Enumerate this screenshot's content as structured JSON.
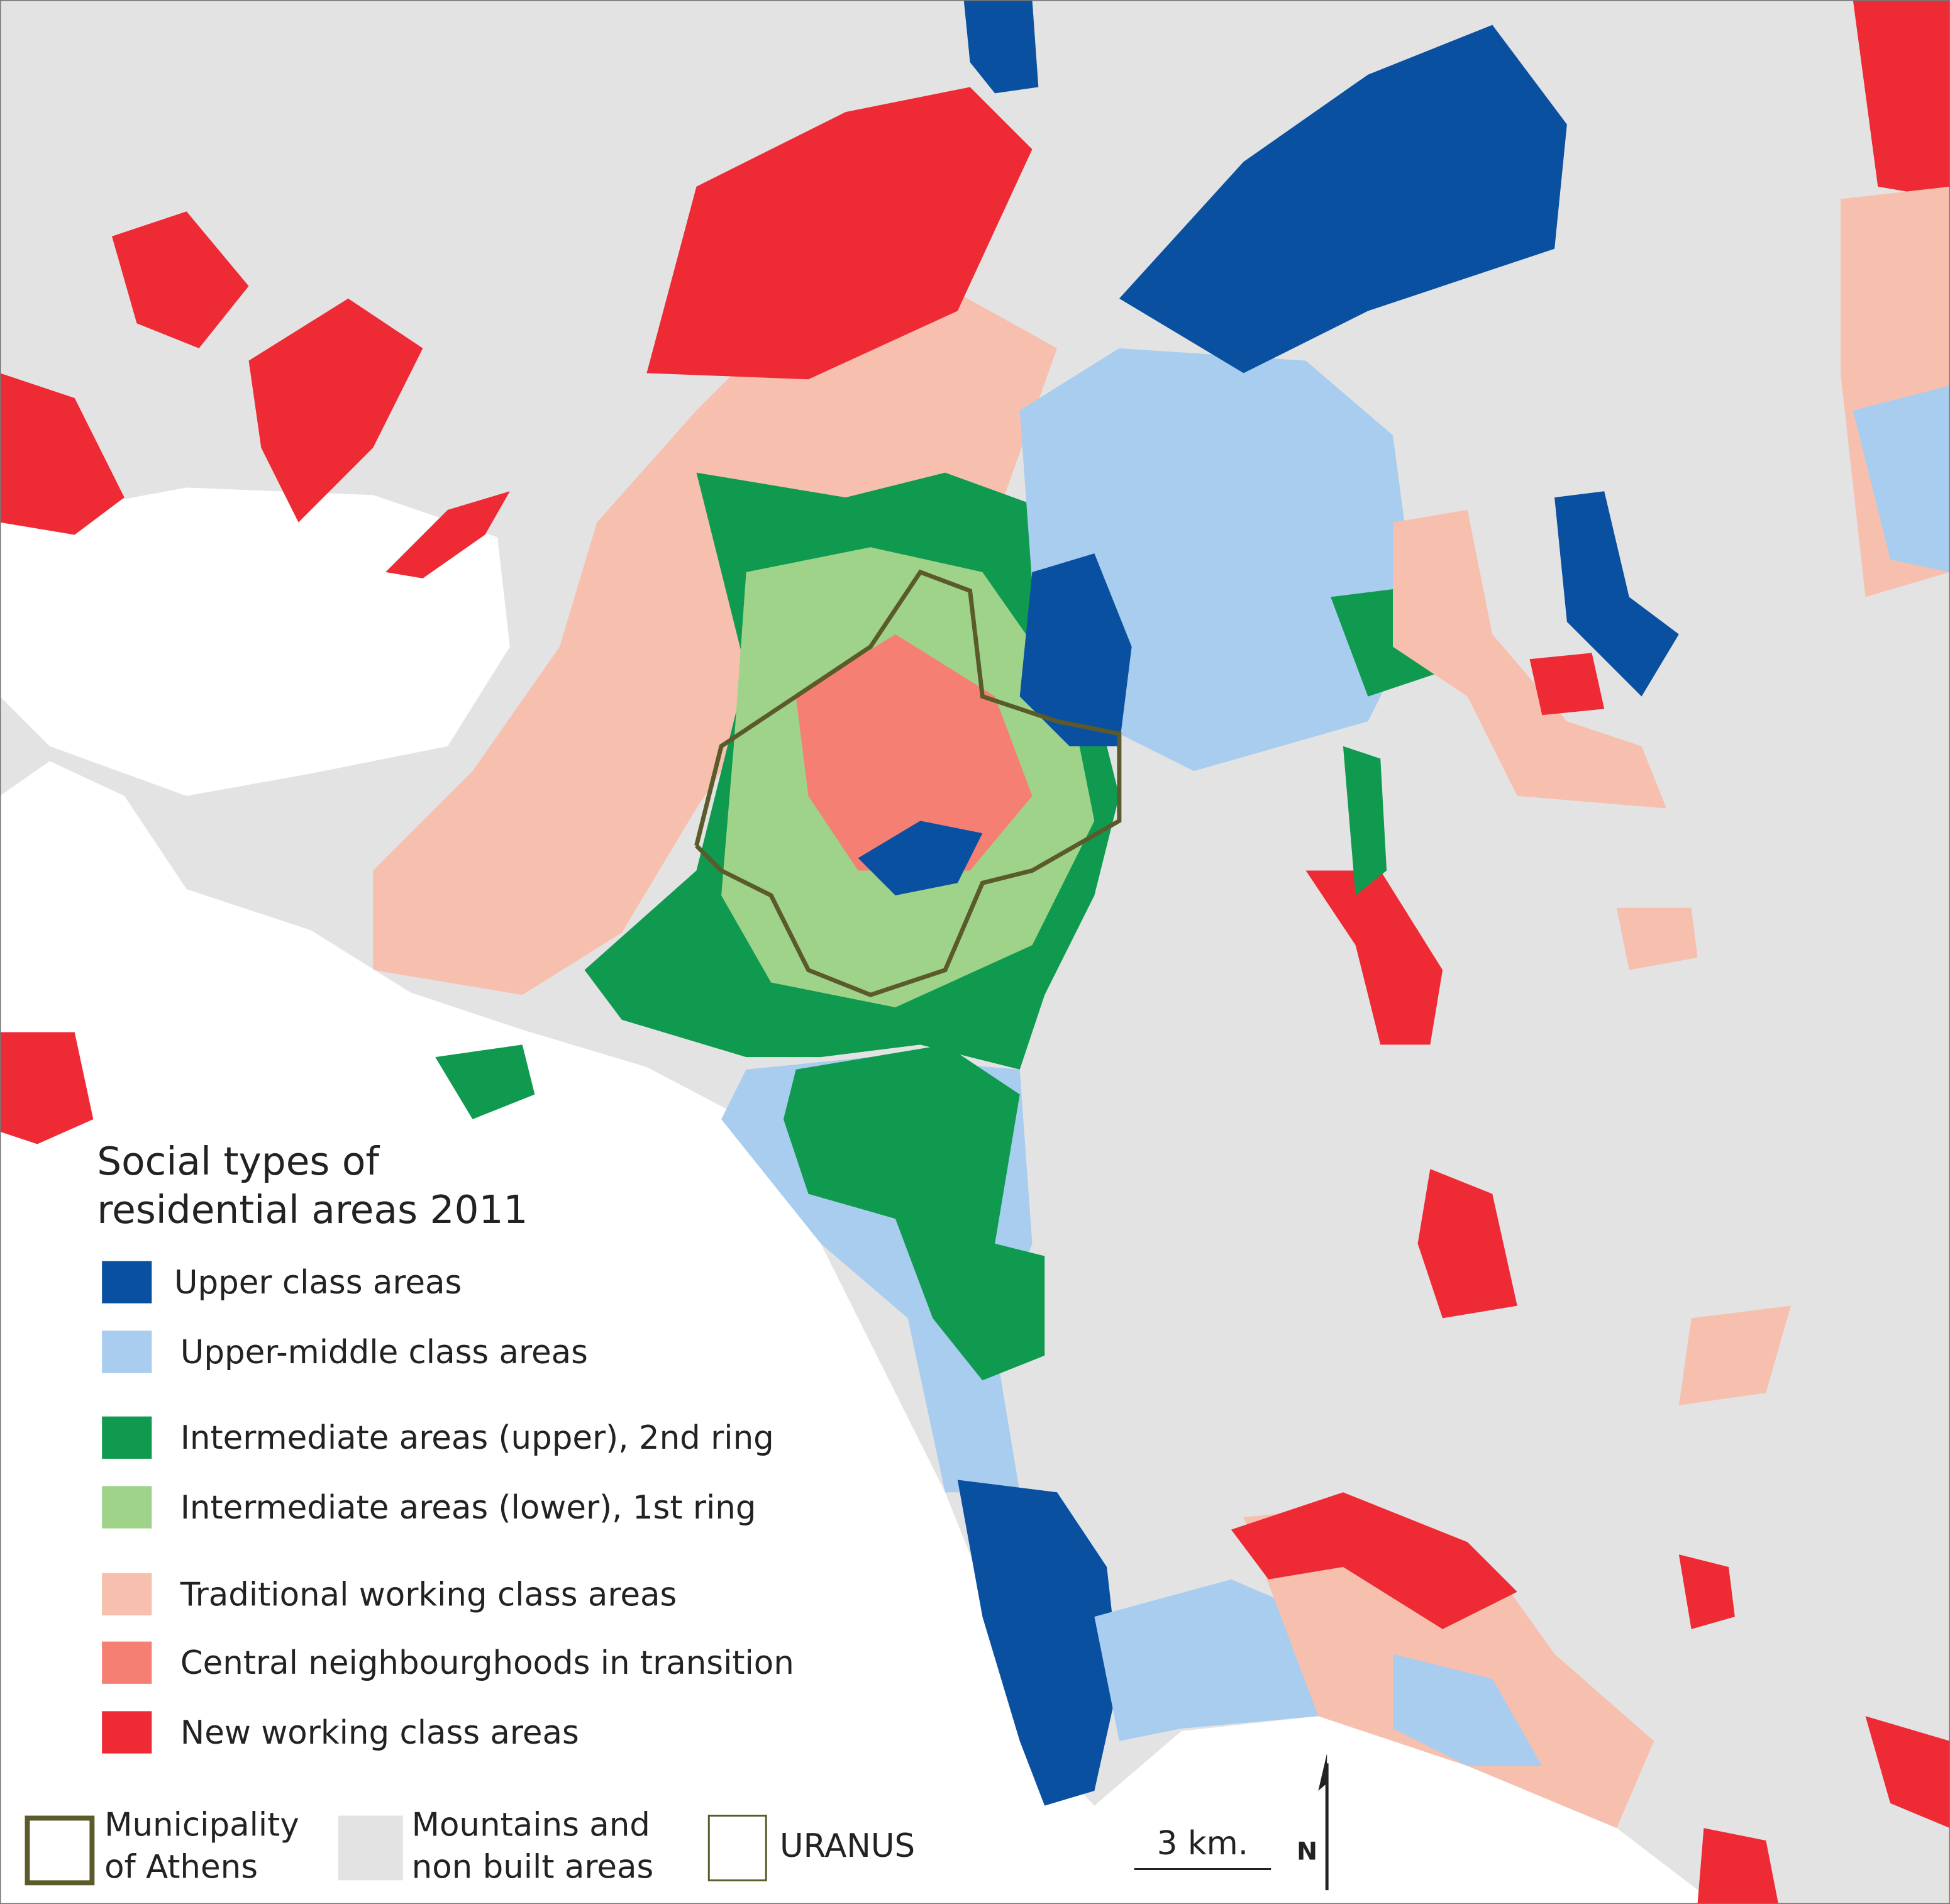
{
  "legend": {
    "title": [
      "Social types of",
      "residential areas 2011"
    ],
    "items": [
      {
        "label": "Upper class areas",
        "color": "#0a50a1"
      },
      {
        "label": "Upper-middle class areas",
        "color": "#a8cdef"
      },
      {
        "label": "Intermediate areas (upper), 2nd ring",
        "color": "#0f9a4f"
      },
      {
        "label": "Intermediate areas (lower), 1st ring",
        "color": "#9fd38a"
      },
      {
        "label": "Traditional working class areas",
        "color": "#f7c0ae"
      },
      {
        "label": "Central neighbourghoods in transition",
        "color": "#f47f72"
      },
      {
        "label": "New working class areas",
        "color": "#ee2a35"
      }
    ]
  },
  "bottom_legend": {
    "municipality": {
      "label": [
        "Municipality",
        "of Athens"
      ],
      "color": "#5a5a2a"
    },
    "mountains": {
      "label": [
        "Mountains and",
        "non built areas"
      ],
      "color": "#e3e3e3"
    },
    "uranus": {
      "label": "URANUS",
      "color": "#5a5a2a"
    }
  },
  "scale": "3 km.",
  "north": "N"
}
